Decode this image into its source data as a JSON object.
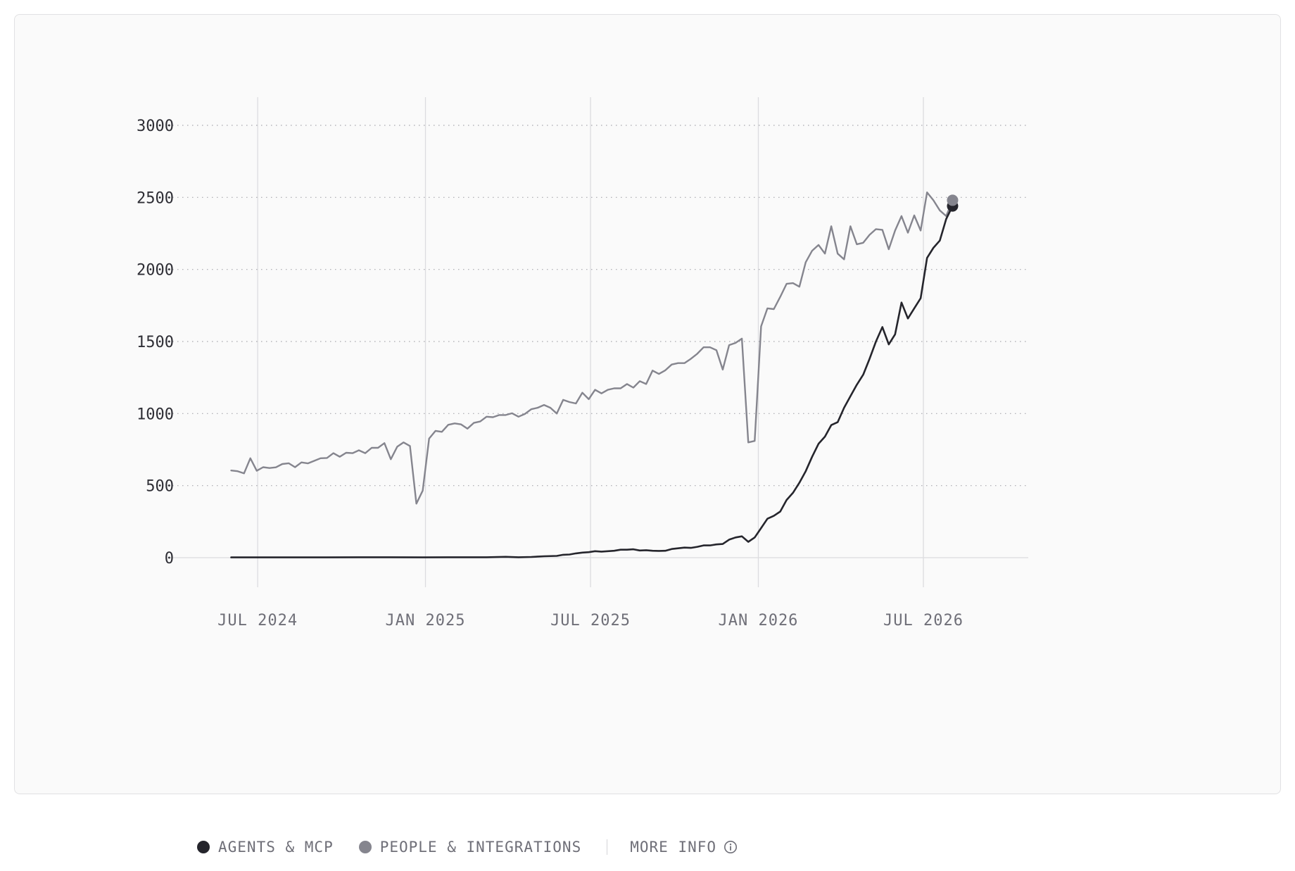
{
  "colors": {
    "agents": "#25252c",
    "people": "#85858e",
    "grid": "#a6a6ad",
    "vgrid": "#dcdcdf",
    "ytick": "#2e2e35",
    "xtick": "#6f6f78"
  },
  "legend": {
    "agents_label": "AGENTS & MCP",
    "people_label": "PEOPLE & INTEGRATIONS",
    "more_info_label": "MORE INFO",
    "more_info_icon": "info-circle-icon"
  },
  "chart_data": {
    "type": "line",
    "ylim": [
      0,
      3000
    ],
    "y_ticks": [
      0,
      500,
      1000,
      1500,
      2000,
      2500,
      3000
    ],
    "y_tick_labels": [
      "0",
      "500",
      "1000",
      "1500",
      "2000",
      "2500",
      "3000"
    ],
    "x_ticks": [
      "2024-07-01",
      "2025-01-01",
      "2025-07-01",
      "2026-01-01",
      "2026-07-01"
    ],
    "x_tick_labels": [
      "JUL 2024",
      "JAN 2025",
      "JUL 2025",
      "JAN 2026",
      "JUL 2026"
    ],
    "xlim": [
      "2024-04-24",
      "2026-10-24"
    ],
    "grid": {
      "horizontal": "dotted",
      "vertical": "solid"
    },
    "legend_position": "bottom-left",
    "series": [
      {
        "name": "PEOPLE & INTEGRATIONS",
        "points": [
          [
            "2024-06-02",
            605
          ],
          [
            "2024-06-09",
            600
          ],
          [
            "2024-06-16",
            585
          ],
          [
            "2024-06-23",
            690
          ],
          [
            "2024-06-30",
            603
          ],
          [
            "2024-07-07",
            628
          ],
          [
            "2024-07-14",
            622
          ],
          [
            "2024-07-21",
            627
          ],
          [
            "2024-07-28",
            650
          ],
          [
            "2024-08-04",
            655
          ],
          [
            "2024-08-11",
            628
          ],
          [
            "2024-08-18",
            661
          ],
          [
            "2024-08-25",
            654
          ],
          [
            "2024-09-01",
            672
          ],
          [
            "2024-09-08",
            690
          ],
          [
            "2024-09-15",
            692
          ],
          [
            "2024-09-22",
            725
          ],
          [
            "2024-09-29",
            700
          ],
          [
            "2024-10-06",
            728
          ],
          [
            "2024-10-13",
            725
          ],
          [
            "2024-10-20",
            745
          ],
          [
            "2024-10-27",
            725
          ],
          [
            "2024-11-03",
            762
          ],
          [
            "2024-11-10",
            762
          ],
          [
            "2024-11-17",
            795
          ],
          [
            "2024-11-24",
            683
          ],
          [
            "2024-12-01",
            770
          ],
          [
            "2024-12-08",
            800
          ],
          [
            "2024-12-15",
            775
          ],
          [
            "2024-12-22",
            375
          ],
          [
            "2024-12-29",
            465
          ],
          [
            "2025-01-05",
            826
          ],
          [
            "2025-01-12",
            880
          ],
          [
            "2025-01-19",
            873
          ],
          [
            "2025-01-26",
            922
          ],
          [
            "2025-02-02",
            932
          ],
          [
            "2025-02-09",
            925
          ],
          [
            "2025-02-16",
            895
          ],
          [
            "2025-02-23",
            935
          ],
          [
            "2025-03-02",
            945
          ],
          [
            "2025-03-09",
            978
          ],
          [
            "2025-03-16",
            975
          ],
          [
            "2025-03-23",
            990
          ],
          [
            "2025-03-30",
            990
          ],
          [
            "2025-04-06",
            1002
          ],
          [
            "2025-04-13",
            978
          ],
          [
            "2025-04-20",
            997
          ],
          [
            "2025-04-27",
            1030
          ],
          [
            "2025-05-04",
            1040
          ],
          [
            "2025-05-11",
            1060
          ],
          [
            "2025-05-18",
            1040
          ],
          [
            "2025-05-25",
            1000
          ],
          [
            "2025-06-01",
            1095
          ],
          [
            "2025-06-08",
            1080
          ],
          [
            "2025-06-15",
            1070
          ],
          [
            "2025-06-22",
            1145
          ],
          [
            "2025-06-29",
            1100
          ],
          [
            "2025-07-06",
            1165
          ],
          [
            "2025-07-13",
            1140
          ],
          [
            "2025-07-20",
            1165
          ],
          [
            "2025-07-27",
            1175
          ],
          [
            "2025-08-03",
            1175
          ],
          [
            "2025-08-10",
            1205
          ],
          [
            "2025-08-17",
            1180
          ],
          [
            "2025-08-24",
            1225
          ],
          [
            "2025-08-31",
            1205
          ],
          [
            "2025-09-07",
            1298
          ],
          [
            "2025-09-14",
            1275
          ],
          [
            "2025-09-21",
            1300
          ],
          [
            "2025-09-28",
            1340
          ],
          [
            "2025-10-05",
            1350
          ],
          [
            "2025-10-12",
            1350
          ],
          [
            "2025-10-19",
            1380
          ],
          [
            "2025-10-26",
            1415
          ],
          [
            "2025-11-02",
            1460
          ],
          [
            "2025-11-09",
            1460
          ],
          [
            "2025-11-16",
            1440
          ],
          [
            "2025-11-23",
            1305
          ],
          [
            "2025-11-30",
            1475
          ],
          [
            "2025-12-07",
            1490
          ],
          [
            "2025-12-14",
            1520
          ],
          [
            "2025-12-21",
            800
          ],
          [
            "2025-12-28",
            810
          ],
          [
            "2026-01-04",
            1605
          ],
          [
            "2026-01-11",
            1730
          ],
          [
            "2026-01-18",
            1725
          ],
          [
            "2026-01-25",
            1810
          ],
          [
            "2026-02-01",
            1900
          ],
          [
            "2026-02-08",
            1905
          ],
          [
            "2026-02-15",
            1880
          ],
          [
            "2026-02-22",
            2050
          ],
          [
            "2026-03-01",
            2130
          ],
          [
            "2026-03-08",
            2170
          ],
          [
            "2026-03-15",
            2110
          ],
          [
            "2026-03-22",
            2300
          ],
          [
            "2026-03-29",
            2110
          ],
          [
            "2026-04-05",
            2070
          ],
          [
            "2026-04-12",
            2300
          ],
          [
            "2026-04-19",
            2175
          ],
          [
            "2026-04-26",
            2185
          ],
          [
            "2026-05-03",
            2240
          ],
          [
            "2026-05-10",
            2280
          ],
          [
            "2026-05-17",
            2275
          ],
          [
            "2026-05-24",
            2140
          ],
          [
            "2026-05-31",
            2270
          ],
          [
            "2026-06-07",
            2370
          ],
          [
            "2026-06-14",
            2255
          ],
          [
            "2026-06-21",
            2375
          ],
          [
            "2026-06-28",
            2270
          ],
          [
            "2026-07-05",
            2535
          ],
          [
            "2026-07-12",
            2480
          ],
          [
            "2026-07-19",
            2410
          ],
          [
            "2026-07-26",
            2370
          ],
          [
            "2026-08-02",
            2480
          ]
        ]
      },
      {
        "name": "AGENTS & MCP",
        "points": [
          [
            "2024-06-02",
            2
          ],
          [
            "2024-07-07",
            2
          ],
          [
            "2024-08-11",
            2
          ],
          [
            "2024-09-15",
            2
          ],
          [
            "2024-10-20",
            3
          ],
          [
            "2024-11-24",
            3
          ],
          [
            "2024-12-29",
            2
          ],
          [
            "2025-02-02",
            3
          ],
          [
            "2025-03-09",
            3
          ],
          [
            "2025-03-30",
            6
          ],
          [
            "2025-04-13",
            3
          ],
          [
            "2025-04-27",
            5
          ],
          [
            "2025-05-11",
            10
          ],
          [
            "2025-05-25",
            12
          ],
          [
            "2025-06-01",
            20
          ],
          [
            "2025-06-08",
            22
          ],
          [
            "2025-06-15",
            30
          ],
          [
            "2025-06-22",
            35
          ],
          [
            "2025-06-29",
            38
          ],
          [
            "2025-07-06",
            45
          ],
          [
            "2025-07-13",
            42
          ],
          [
            "2025-07-20",
            45
          ],
          [
            "2025-07-27",
            48
          ],
          [
            "2025-08-03",
            55
          ],
          [
            "2025-08-10",
            55
          ],
          [
            "2025-08-17",
            58
          ],
          [
            "2025-08-24",
            50
          ],
          [
            "2025-08-31",
            52
          ],
          [
            "2025-09-07",
            48
          ],
          [
            "2025-09-14",
            47
          ],
          [
            "2025-09-21",
            48
          ],
          [
            "2025-09-28",
            60
          ],
          [
            "2025-10-05",
            65
          ],
          [
            "2025-10-12",
            70
          ],
          [
            "2025-10-19",
            68
          ],
          [
            "2025-10-26",
            75
          ],
          [
            "2025-11-02",
            85
          ],
          [
            "2025-11-09",
            85
          ],
          [
            "2025-11-16",
            92
          ],
          [
            "2025-11-23",
            95
          ],
          [
            "2025-11-30",
            125
          ],
          [
            "2025-12-07",
            140
          ],
          [
            "2025-12-14",
            148
          ],
          [
            "2025-12-21",
            110
          ],
          [
            "2025-12-28",
            140
          ],
          [
            "2026-01-04",
            205
          ],
          [
            "2026-01-11",
            270
          ],
          [
            "2026-01-18",
            290
          ],
          [
            "2026-01-25",
            320
          ],
          [
            "2026-02-01",
            400
          ],
          [
            "2026-02-08",
            450
          ],
          [
            "2026-02-15",
            520
          ],
          [
            "2026-02-22",
            600
          ],
          [
            "2026-03-01",
            700
          ],
          [
            "2026-03-08",
            790
          ],
          [
            "2026-03-15",
            840
          ],
          [
            "2026-03-22",
            920
          ],
          [
            "2026-03-29",
            940
          ],
          [
            "2026-04-05",
            1040
          ],
          [
            "2026-04-12",
            1120
          ],
          [
            "2026-04-19",
            1200
          ],
          [
            "2026-04-26",
            1270
          ],
          [
            "2026-05-03",
            1380
          ],
          [
            "2026-05-10",
            1500
          ],
          [
            "2026-05-17",
            1600
          ],
          [
            "2026-05-24",
            1480
          ],
          [
            "2026-05-31",
            1550
          ],
          [
            "2026-06-07",
            1770
          ],
          [
            "2026-06-14",
            1660
          ],
          [
            "2026-06-21",
            1730
          ],
          [
            "2026-06-28",
            1800
          ],
          [
            "2026-07-05",
            2080
          ],
          [
            "2026-07-12",
            2150
          ],
          [
            "2026-07-19",
            2200
          ],
          [
            "2026-07-26",
            2350
          ],
          [
            "2026-08-02",
            2440
          ]
        ]
      }
    ]
  }
}
